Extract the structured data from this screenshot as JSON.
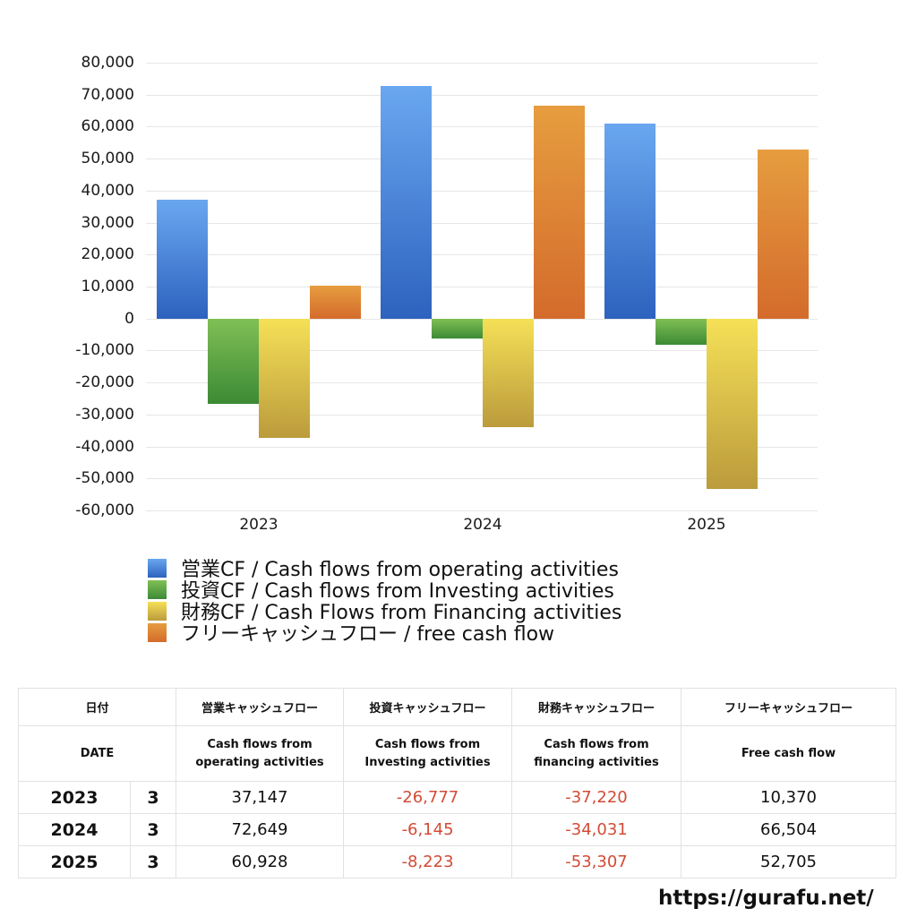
{
  "chart_data": {
    "type": "bar",
    "title": "",
    "xlabel": "",
    "ylabel": "",
    "categories": [
      "2023",
      "2024",
      "2025"
    ],
    "ylim": [
      -60000,
      80000
    ],
    "yticks": [
      "80,000",
      "70,000",
      "60,000",
      "50,000",
      "40,000",
      "30,000",
      "20,000",
      "10,000",
      "0",
      "-10,000",
      "-20,000",
      "-30,000",
      "-40,000",
      "-50,000",
      "-60,000"
    ],
    "grid": true,
    "legend_position": "bottom",
    "series": [
      {
        "name": "営業CF / Cash flows from operating activities",
        "color": "#3d78d6",
        "values": [
          37147,
          72649,
          60928
        ]
      },
      {
        "name": "投資CF / Cash flows from Investing activities",
        "color": "#4e9a3d",
        "values": [
          -26777,
          -6145,
          -8223
        ]
      },
      {
        "name": "財務CF / Cash Flows from Financing activities",
        "color": "#d9c24a",
        "values": [
          -37220,
          -34031,
          -53307
        ]
      },
      {
        "name": "フリーキャッシュフロー / free cash flow",
        "color": "#dc7f34",
        "values": [
          10370,
          66504,
          52705
        ]
      }
    ]
  },
  "table": {
    "header_jp": {
      "date": "日付",
      "op": "営業キャッシュフロー",
      "inv": "投資キャッシュフロー",
      "fin": "財務キャッシュフロー",
      "free": "フリーキャッシュフロー"
    },
    "header_en": {
      "date": "DATE",
      "op_1": "Cash flows from",
      "op_2": "operating activities",
      "inv_1": "Cash flows from",
      "inv_2": "Investing activities",
      "fin_1": "Cash flows from",
      "fin_2": "financing activities",
      "free": "Free cash flow"
    },
    "rows": [
      {
        "year": "2023",
        "month": "3",
        "op": "37,147",
        "inv": "-26,777",
        "fin": "-37,220",
        "free": "10,370"
      },
      {
        "year": "2024",
        "month": "3",
        "op": "72,649",
        "inv": "-6,145",
        "fin": "-34,031",
        "free": "66,504"
      },
      {
        "year": "2025",
        "month": "3",
        "op": "60,928",
        "inv": "-8,223",
        "fin": "-53,307",
        "free": "52,705"
      }
    ]
  },
  "site_url": "https://gurafu.net/"
}
